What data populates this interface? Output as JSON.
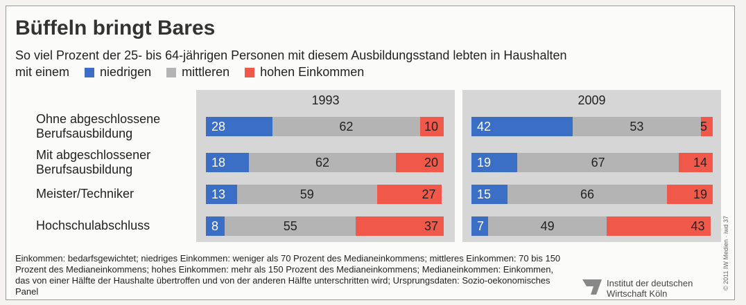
{
  "header": {
    "title": "Büffeln bringt Bares",
    "subtitle": "So viel Prozent der 25- bis 64-jährigen Personen mit diesem Ausbildungsstand lebten in Haushalten",
    "legend_prefix": "mit einem"
  },
  "chart_data": [
    {
      "type": "bar",
      "orientation": "horizontal",
      "stacked": true,
      "title": "1993",
      "xlim": [
        0,
        100
      ],
      "categories": [
        "Ohne abgeschlossene Berufsausbildung",
        "Mit abgeschlossener Berufsausbildung",
        "Meister/Techniker",
        "Hochschulabschluss"
      ],
      "series": [
        {
          "name": "niedrigen",
          "color": "#3b6fc6",
          "values": [
            28,
            18,
            13,
            8
          ]
        },
        {
          "name": "mittleren",
          "color": "#b4b4b4",
          "values": [
            62,
            62,
            59,
            55
          ]
        },
        {
          "name": "hohen Einkommen",
          "color": "#f0594a",
          "values": [
            10,
            20,
            27,
            37
          ]
        }
      ]
    },
    {
      "type": "bar",
      "orientation": "horizontal",
      "stacked": true,
      "title": "2009",
      "xlim": [
        0,
        100
      ],
      "series": [
        {
          "color": "#3b6fc6",
          "values": [
            42,
            19,
            15,
            7
          ]
        },
        {
          "color": "#b4b4b4",
          "values": [
            53,
            67,
            66,
            49
          ]
        },
        {
          "color": "#f0594a",
          "values": [
            5,
            14,
            19,
            43
          ]
        }
      ]
    }
  ],
  "footer": {
    "note": "Einkommen: bedarfsgewichtet; niedriges Einkommen: weniger als 70 Prozent des Medianeinkommens; mittleres Einkommen: 70 bis 150 Prozent des Medianeinkommens; hohes Einkommen: mehr als 150 Prozent des Medianeinkommens; Medianeinkommen: Einkommen, das von einer Hälfte der Haushalte übertroffen und von der anderen Hälfte unterschritten wird; Ursprungsdaten: Sozio-oekonomisches Panel",
    "source": "Institut der deutschen Wirtschaft Köln",
    "copyright": "© 2011 IW Medien · iwd 37"
  }
}
